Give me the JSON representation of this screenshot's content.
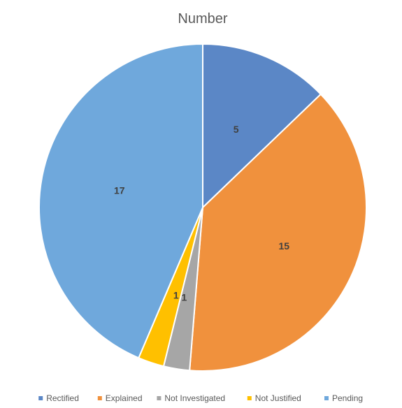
{
  "chart_data": {
    "type": "pie",
    "title": "Number",
    "categories": [
      "Rectified",
      "Explained",
      "Not Investigated",
      "Not Justified",
      "Pending"
    ],
    "values": [
      5,
      15,
      1,
      1,
      17
    ],
    "colors": [
      "#5B87C6",
      "#F0913D",
      "#A6A6A6",
      "#FFC000",
      "#6FA8DC"
    ],
    "start_angle_deg": 0,
    "direction": "clockwise",
    "legend_position": "bottom"
  }
}
